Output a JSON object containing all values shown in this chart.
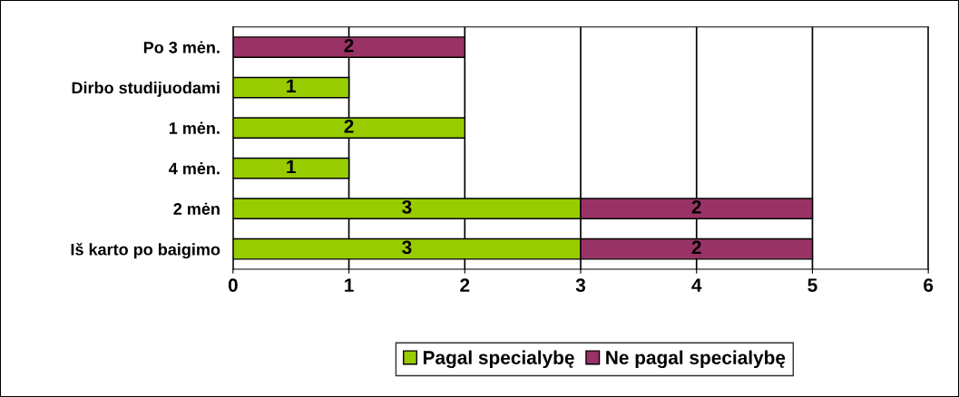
{
  "chart_data": {
    "type": "bar",
    "orientation": "horizontal",
    "stacked": true,
    "categories": [
      "Po 3 mėn.",
      "Dirbo studijuodami",
      "1 mėn.",
      "4 mėn.",
      "2 mėn",
      "Iš karto po baigimo"
    ],
    "series": [
      {
        "name": "Pagal specialybę",
        "color": "#99cc00",
        "values": [
          null,
          1,
          2,
          1,
          3,
          3
        ]
      },
      {
        "name": "Ne pagal specialybę",
        "color": "#993366",
        "values": [
          2,
          null,
          null,
          null,
          2,
          2
        ]
      }
    ],
    "xlim": [
      0,
      6
    ],
    "xticks": [
      0,
      1,
      2,
      3,
      4,
      5,
      6
    ],
    "grid": "x",
    "legend": "bottom",
    "data_labels": true
  }
}
